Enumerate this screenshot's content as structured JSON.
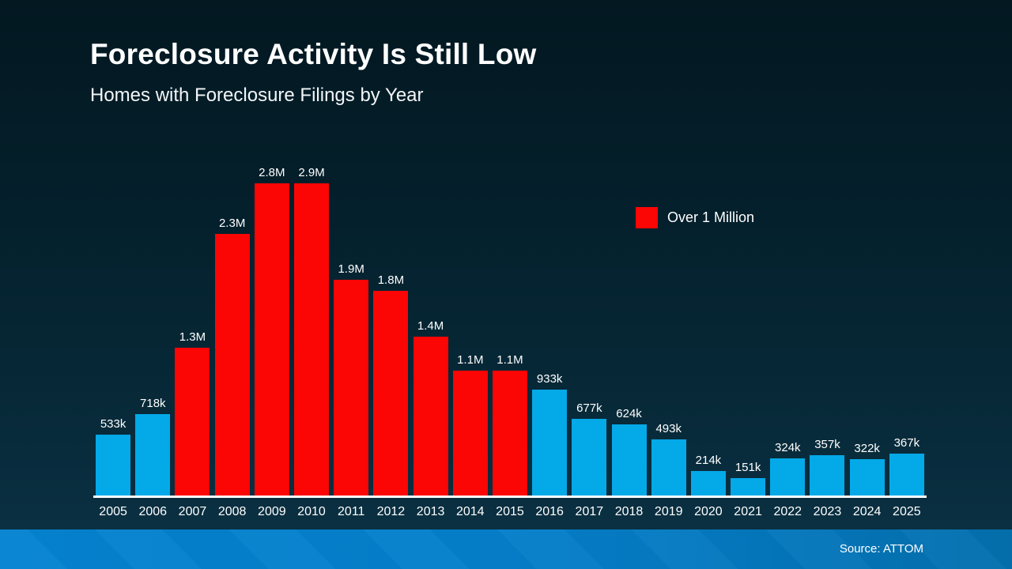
{
  "header": {
    "title": "Foreclosure Activity Is Still Low",
    "subtitle": "Homes with Foreclosure Filings by Year"
  },
  "legend": {
    "label": "Over 1 Million",
    "swatch_color": "#fb0505"
  },
  "footer": {
    "source": "Source: ATTOM"
  },
  "colors": {
    "bar_blue": "#04a9e8",
    "bar_red": "#fb0505",
    "axis": "#ffffff",
    "background_top": "#031821",
    "background_bottom": "#0b3245",
    "footer_band_left": "#0583d1",
    "footer_band_right": "#0470ae"
  },
  "chart_data": {
    "type": "bar",
    "title": "Homes with Foreclosure Filings by Year",
    "xlabel": "",
    "ylabel": "",
    "categories": [
      "2005",
      "2006",
      "2007",
      "2008",
      "2009",
      "2010",
      "2011",
      "2012",
      "2013",
      "2014",
      "2015",
      "2016",
      "2017",
      "2018",
      "2019",
      "2020",
      "2021",
      "2022",
      "2023",
      "2024",
      "2025"
    ],
    "values_thousands": [
      533,
      718,
      1300,
      2300,
      2800,
      2900,
      1900,
      1800,
      1400,
      1100,
      1100,
      933,
      677,
      624,
      493,
      214,
      151,
      324,
      357,
      322,
      367
    ],
    "labels": [
      "533k",
      "718k",
      "1.3M",
      "2.3M",
      "2.8M",
      "2.9M",
      "1.9M",
      "1.8M",
      "1.4M",
      "1.1M",
      "1.1M",
      "933k",
      "677k",
      "624k",
      "493k",
      "214k",
      "151k",
      "324k",
      "357k",
      "322k",
      "367k"
    ],
    "red_threshold_thousands": 1000,
    "ylim_thousands": [
      0,
      2900
    ],
    "grid": false,
    "legend_position": "right",
    "legend_entries": [
      {
        "label": "Over 1 Million",
        "color": "#fb0505"
      }
    ]
  }
}
